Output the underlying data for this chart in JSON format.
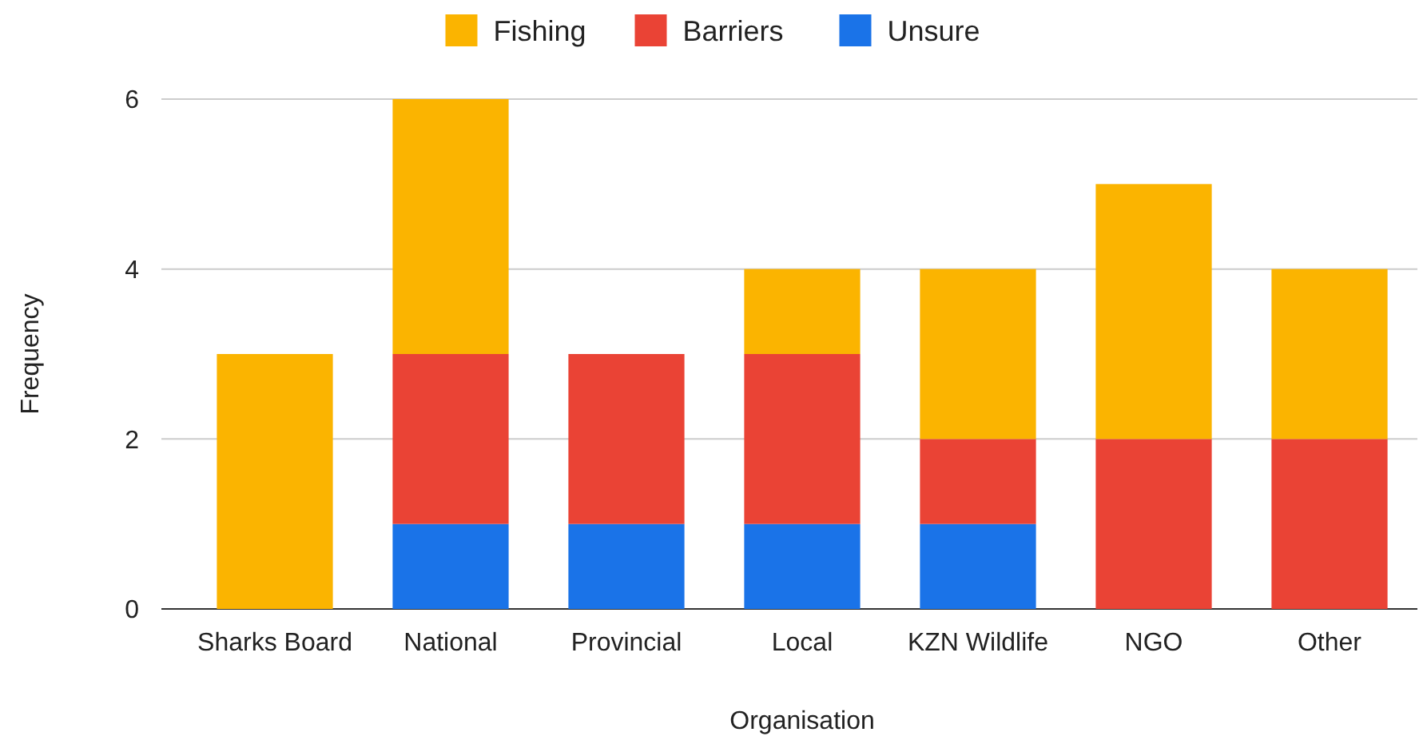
{
  "chart_data": {
    "type": "bar",
    "stacked": true,
    "xlabel": "Organisation",
    "ylabel": "Frequency",
    "categories": [
      "Sharks Board",
      "National",
      "Provincial",
      "Local",
      "KZN Wildlife",
      "NGO",
      "Other"
    ],
    "series": [
      {
        "name": "Unsure",
        "color": "#1a73e8",
        "values": [
          0,
          1,
          1,
          1,
          1,
          0,
          0
        ]
      },
      {
        "name": "Barriers",
        "color": "#ea4335",
        "values": [
          0,
          2,
          2,
          2,
          1,
          2,
          2
        ]
      },
      {
        "name": "Fishing",
        "color": "#fbb400",
        "values": [
          3,
          3,
          0,
          1,
          2,
          3,
          2
        ]
      }
    ],
    "ylim": [
      0,
      6
    ],
    "yticks": [
      0,
      2,
      4,
      6
    ],
    "grid": "y",
    "legend": "top"
  }
}
